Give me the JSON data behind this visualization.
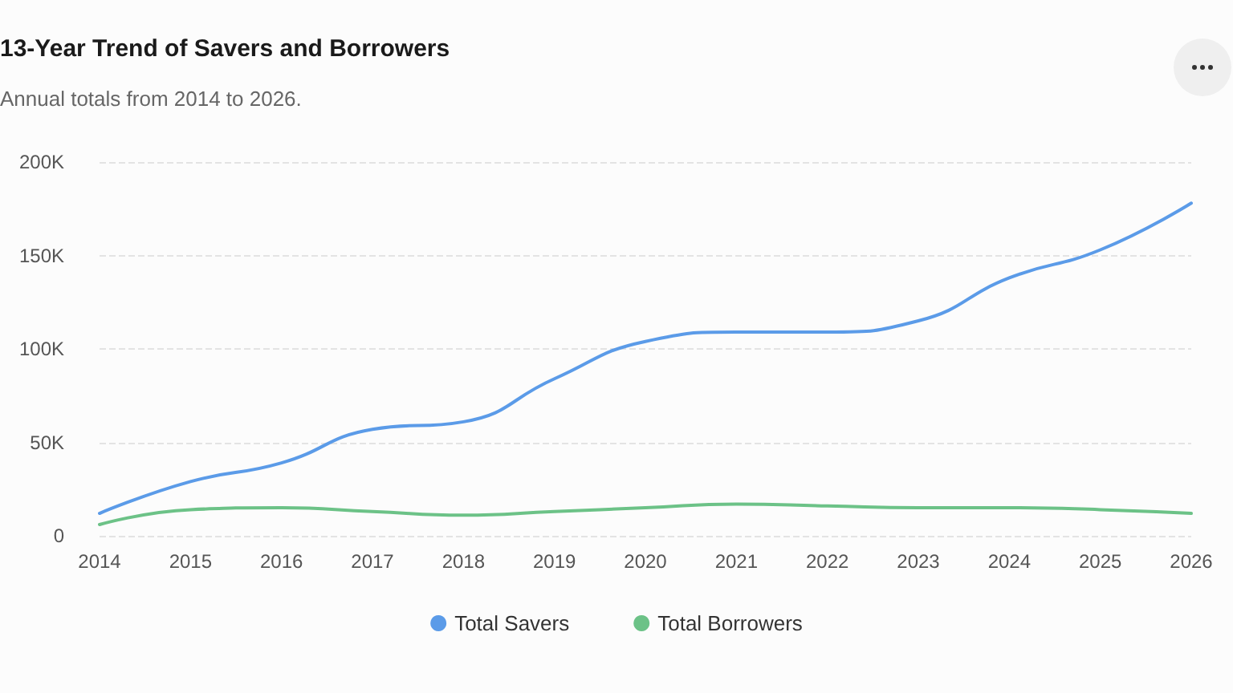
{
  "chart_data": {
    "type": "line",
    "title": "13-Year Trend of Savers and Borrowers",
    "subtitle": "Annual totals from 2014 to 2026.",
    "categories": [
      "2014",
      "2015",
      "2016",
      "2017",
      "2018",
      "2019",
      "2020",
      "2021",
      "2022",
      "2023",
      "2024",
      "2025",
      "2026"
    ],
    "series": [
      {
        "name": "Total Savers",
        "color": "#5b9be8",
        "values": [
          12000,
          29000,
          39000,
          57000,
          61000,
          84000,
          104000,
          109000,
          109000,
          115000,
          138000,
          153000,
          178000
        ]
      },
      {
        "name": "Total Borrowers",
        "color": "#6cc287",
        "values": [
          6000,
          14000,
          15000,
          13000,
          11000,
          13000,
          15000,
          17000,
          16000,
          15000,
          15000,
          14000,
          12000
        ]
      }
    ],
    "ylim": [
      0,
      200000
    ],
    "yticks": [
      {
        "value": 0,
        "label": "0"
      },
      {
        "value": 50000,
        "label": "50K"
      },
      {
        "value": 100000,
        "label": "100K"
      },
      {
        "value": 150000,
        "label": "150K"
      },
      {
        "value": 200000,
        "label": "200K"
      }
    ],
    "grid": "y",
    "legend": "bottom",
    "marker": "none",
    "line_style": "solid"
  }
}
